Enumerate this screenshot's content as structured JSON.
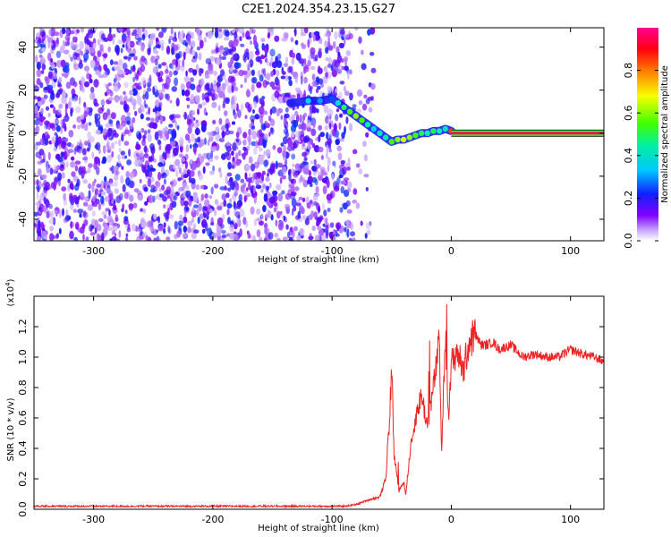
{
  "title": "C2E1.2024.354.23.15.G27",
  "colors": {
    "snr_line": "#ee2222",
    "ridge_outline": "#1a1aff",
    "background_speckle": "#7b1fff",
    "flat_line_core": "#e0203a"
  },
  "chart_data": [
    {
      "type": "heatmap",
      "xlabel": "Height of straight line (km)",
      "ylabel": "Frequency (Hz)",
      "xlim": [
        -350,
        128
      ],
      "ylim": [
        -50,
        49
      ],
      "xticks": [
        -300,
        -200,
        -100,
        0,
        100
      ],
      "yticks": [
        -40,
        -20,
        0,
        20,
        40
      ],
      "colorscale": "rainbow (purple → blue → cyan → green → yellow → red → magenta)",
      "colorbar": {
        "label": "Normalized spectral amplitude",
        "range": [
          0.0,
          1.0
        ],
        "ticks": [
          0.0,
          0.2,
          0.4,
          0.6,
          0.8
        ]
      },
      "noise_region": {
        "x_range": [
          -350,
          -85
        ],
        "freq_range": [
          -50,
          49
        ],
        "amplitude": "0.0-0.25"
      },
      "ridge": {
        "x": [
          -135,
          -120,
          -110,
          -100,
          -95,
          -90,
          -85,
          -80,
          -75,
          -70,
          -65,
          -60,
          -55,
          -50,
          -45,
          -40,
          -35,
          -30,
          -25,
          -20,
          -15,
          -10,
          -5,
          0
        ],
        "freq": [
          14,
          15,
          15,
          16,
          14,
          12,
          10,
          8,
          6,
          4,
          2,
          0,
          -2,
          -4,
          -3,
          -3,
          -2,
          -1,
          0,
          0,
          1,
          1,
          2,
          1
        ],
        "amplitude": [
          0.2,
          0.35,
          0.3,
          0.25,
          0.4,
          0.5,
          0.55,
          0.6,
          0.55,
          0.45,
          0.35,
          0.4,
          0.45,
          0.55,
          0.6,
          0.65,
          0.6,
          0.55,
          0.5,
          0.45,
          0.5,
          0.45,
          0.4,
          0.85
        ]
      },
      "flat_line": {
        "x_range": [
          0,
          128
        ],
        "freq": 0,
        "amplitude": 0.95
      }
    },
    {
      "type": "line",
      "title": "",
      "xlabel": "Height of straight line (km)",
      "ylabel": "SNR (10 * v/v)",
      "y_multiplier": "(x10^4)",
      "xlim": [
        -350,
        128
      ],
      "ylim": [
        0,
        1.4
      ],
      "xticks": [
        -300,
        -200,
        -100,
        0,
        100
      ],
      "yticks": [
        0.0,
        0.2,
        0.4,
        0.6,
        0.8,
        1.0,
        1.2
      ],
      "series": [
        {
          "x": [
            -350,
            -300,
            -250,
            -200,
            -150,
            -120,
            -100,
            -90,
            -80,
            -70,
            -60,
            -55,
            -52,
            -50,
            -48,
            -46,
            -44,
            -42,
            -40,
            -38,
            -35,
            -30,
            -25,
            -20,
            -15,
            -10,
            -8,
            -5,
            -2,
            0,
            5,
            10,
            15,
            20,
            25,
            30,
            35,
            40,
            50,
            60,
            70,
            80,
            90,
            100,
            110,
            120,
            128
          ],
          "y": [
            0.02,
            0.02,
            0.02,
            0.02,
            0.02,
            0.02,
            0.02,
            0.02,
            0.03,
            0.06,
            0.08,
            0.2,
            0.55,
            0.95,
            0.35,
            0.25,
            0.12,
            0.15,
            0.18,
            0.1,
            0.35,
            0.6,
            0.75,
            0.55,
            0.8,
            1.1,
            0.35,
            1.15,
            0.6,
            0.95,
            1.05,
            0.9,
            1.1,
            1.15,
            1.08,
            1.08,
            1.1,
            1.05,
            1.08,
            1.0,
            1.02,
            1.0,
            1.0,
            1.05,
            1.02,
            1.0,
            0.97
          ]
        }
      ]
    }
  ]
}
